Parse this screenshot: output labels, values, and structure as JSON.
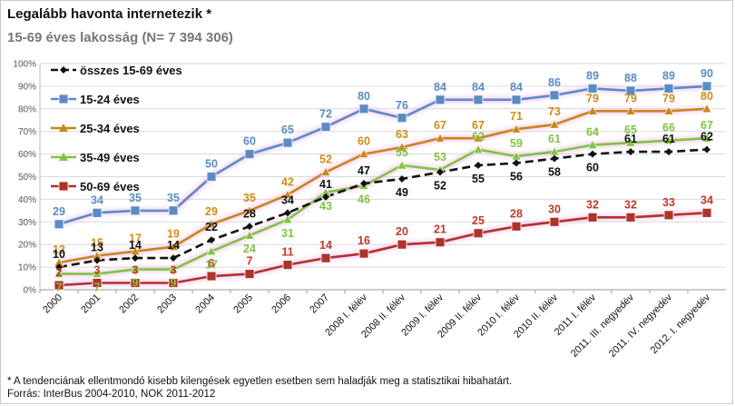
{
  "chart_data": {
    "type": "line",
    "title": "Legalább havonta internetezik *",
    "subtitle": "15-69 éves lakosság (N= 7 394 306)",
    "categories": [
      "2000",
      "2001",
      "2002",
      "2003",
      "2004",
      "2005",
      "2006",
      "2007",
      "2008 I. félév",
      "2008 II. félév",
      "2009 I. félév",
      "2009 II. félév",
      "2010 I. félév",
      "2010 II. félév",
      "2011 I. félév",
      "2011. III. negyedév",
      "2011. IV. negyedév",
      "2012. I. negyedév"
    ],
    "ylim": [
      0,
      100
    ],
    "yticks": [
      "0%",
      "10%",
      "20%",
      "30%",
      "40%",
      "50%",
      "60%",
      "70%",
      "80%",
      "90%",
      "100%"
    ],
    "grid": true,
    "legend_position": "top-left",
    "series": [
      {
        "name": "összes 15-69 éves",
        "color": "#111111",
        "style": "dashed",
        "values": [
          10,
          13,
          14,
          14,
          22,
          28,
          34,
          41,
          47,
          49,
          52,
          55,
          56,
          58,
          60,
          61,
          61,
          62
        ]
      },
      {
        "name": "15-24 éves",
        "color": "#5b8bc5",
        "style": "solid",
        "values": [
          29,
          34,
          35,
          35,
          50,
          60,
          65,
          72,
          80,
          76,
          84,
          84,
          84,
          86,
          89,
          88,
          89,
          90
        ]
      },
      {
        "name": "25-34 éves",
        "color": "#c8861b",
        "style": "solid",
        "values": [
          12,
          15,
          17,
          19,
          29,
          35,
          42,
          52,
          60,
          63,
          67,
          67,
          71,
          73,
          79,
          79,
          79,
          80
        ]
      },
      {
        "name": "35-49 éves",
        "color": "#82c341",
        "style": "solid",
        "values": [
          7,
          7,
          9,
          9,
          17,
          24,
          31,
          43,
          46,
          55,
          53,
          62,
          59,
          61,
          64,
          65,
          66,
          67
        ]
      },
      {
        "name": "50-69 éves",
        "color": "#b0322a",
        "style": "solid",
        "values": [
          2,
          3,
          3,
          3,
          6,
          7,
          11,
          14,
          16,
          20,
          21,
          25,
          28,
          30,
          32,
          32,
          33,
          34
        ]
      }
    ]
  },
  "footnotes": {
    "note": "* A tendenciának ellentmondó kisebb kilengések egyetlen esetben sem haladják meg a statisztikai hibahatárt.",
    "source": "Forrás: InterBus 2004-2010, NOK 2011-2012"
  }
}
